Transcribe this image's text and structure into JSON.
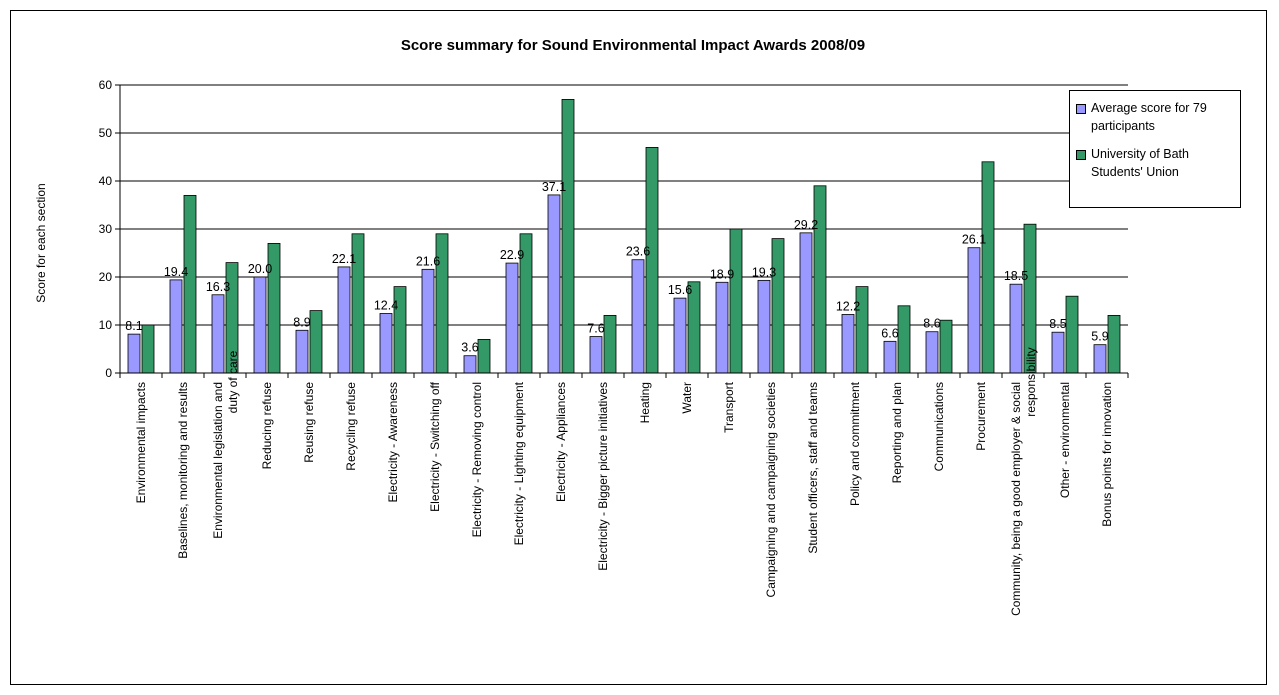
{
  "chart_data": {
    "type": "bar",
    "title": "Score summary for Sound Environmental Impact Awards 2008/09",
    "ylabel": "Score for each section",
    "ylim": [
      0,
      60
    ],
    "yticks": [
      0,
      10,
      20,
      30,
      40,
      50,
      60
    ],
    "grid": true,
    "legend_position": "top-right",
    "categories": [
      "Environmental impacts",
      "Baselines, monitoring and results",
      "Environmental legislation and duty of care",
      "Reducing refuse",
      "Reusing refuse",
      "Recycling refuse",
      "Electricity - Awareness",
      "Electricity - Switching off",
      "Electricity - Removing control",
      "Electricity - Lighting equipment",
      "Electricity - Appliances",
      "Electricity - Bigger picture initiatives",
      "Heating",
      "Water",
      "Transport",
      "Campaigning and campaigning societies",
      "Student officers, staff and teams",
      "Policy and commitment",
      "Reporting and plan",
      "Communications",
      "Procurement",
      "Community, being a good employer & social responsibility",
      "Other - environmental",
      "Bonus points for innovation"
    ],
    "series": [
      {
        "name": "Average score for 79 participants",
        "color": "#9999ff",
        "labels": [
          "8.1",
          "19.4",
          "16.3",
          "20.0",
          "8.9",
          "22.1",
          "12.4",
          "21.6",
          "3.6",
          "22.9",
          "37.1",
          "7.6",
          "23.6",
          "15.6",
          "18.9",
          "19.3",
          "29.2",
          "12.2",
          "6.6",
          "8.6",
          "26.1",
          "18.5",
          "8.5",
          "5.9"
        ],
        "values": [
          8.1,
          19.4,
          16.3,
          20.0,
          8.9,
          22.1,
          12.4,
          21.6,
          3.6,
          22.9,
          37.1,
          7.6,
          23.6,
          15.6,
          18.9,
          19.3,
          29.2,
          12.2,
          6.6,
          8.6,
          26.1,
          18.5,
          8.5,
          5.9
        ]
      },
      {
        "name": "University of Bath Students' Union",
        "color": "#339966",
        "values": [
          10,
          37,
          23,
          27,
          13,
          29,
          18,
          29,
          7,
          29,
          57,
          12,
          47,
          19,
          30,
          28,
          39,
          18,
          14,
          11,
          44,
          31,
          16,
          12
        ]
      }
    ]
  }
}
